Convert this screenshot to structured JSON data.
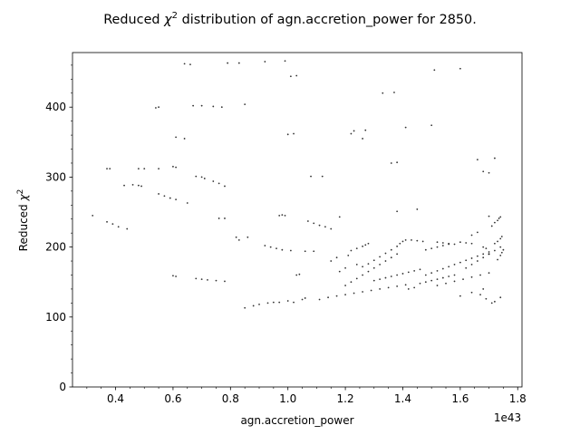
{
  "chart_data": {
    "type": "scatter",
    "title_prefix": "Reduced ",
    "title_symbol": "χ",
    "title_exponent": "2",
    "title_suffix": " distribution of agn.accretion_power for 2850.",
    "xlabel": "agn.accretion_power",
    "ylabel_prefix": "Reduced ",
    "ylabel_symbol": "χ",
    "ylabel_exponent": "2",
    "x_offset_label": "1e43",
    "x_scale": 1e+43,
    "xlim": [
      0.25,
      1.815
    ],
    "ylim": [
      0,
      478
    ],
    "x_ticks": [
      0.4,
      0.6,
      0.8,
      1.0,
      1.2,
      1.4,
      1.6,
      1.8
    ],
    "x_tick_labels": [
      "0.4",
      "0.6",
      "0.8",
      "1.0",
      "1.2",
      "1.4",
      "1.6",
      "1.8"
    ],
    "y_ticks": [
      0,
      100,
      200,
      300,
      400
    ],
    "y_tick_labels": [
      "0",
      "100",
      "200",
      "300",
      "400"
    ],
    "grid": false,
    "marker_color": "#000000",
    "series": [
      {
        "points": [
          [
            0.32,
            245
          ],
          [
            0.37,
            312
          ],
          [
            0.38,
            312
          ],
          [
            0.37,
            236
          ],
          [
            0.39,
            233
          ],
          [
            0.41,
            229
          ],
          [
            0.44,
            226
          ],
          [
            0.43,
            288
          ],
          [
            0.46,
            289
          ],
          [
            0.48,
            288
          ],
          [
            0.49,
            287
          ],
          [
            0.48,
            312
          ],
          [
            0.5,
            312
          ],
          [
            0.54,
            399
          ],
          [
            0.55,
            400
          ],
          [
            0.55,
            312
          ],
          [
            0.55,
            276
          ],
          [
            0.57,
            273
          ],
          [
            0.59,
            270
          ],
          [
            0.61,
            268
          ],
          [
            0.6,
            315
          ],
          [
            0.61,
            314
          ],
          [
            0.6,
            159
          ],
          [
            0.61,
            158
          ],
          [
            0.61,
            357
          ],
          [
            0.64,
            355
          ],
          [
            0.64,
            462
          ],
          [
            0.66,
            461
          ],
          [
            0.65,
            263
          ],
          [
            0.67,
            402
          ],
          [
            0.7,
            402
          ],
          [
            0.74,
            401
          ],
          [
            0.77,
            400
          ],
          [
            0.68,
            301
          ],
          [
            0.7,
            300
          ],
          [
            0.71,
            298
          ],
          [
            0.74,
            294
          ],
          [
            0.76,
            291
          ],
          [
            0.78,
            287
          ],
          [
            0.68,
            155
          ],
          [
            0.7,
            154
          ],
          [
            0.72,
            153
          ],
          [
            0.75,
            152
          ],
          [
            0.78,
            151
          ],
          [
            0.76,
            241
          ],
          [
            0.78,
            241
          ],
          [
            0.79,
            463
          ],
          [
            0.83,
            463
          ],
          [
            0.85,
            404
          ],
          [
            0.82,
            214
          ],
          [
            0.83,
            210
          ],
          [
            0.86,
            214
          ],
          [
            0.92,
            465
          ],
          [
            0.99,
            466
          ],
          [
            0.85,
            113
          ],
          [
            0.88,
            116
          ],
          [
            0.9,
            118
          ],
          [
            0.93,
            120
          ],
          [
            0.95,
            121
          ],
          [
            0.97,
            121
          ],
          [
            0.92,
            202
          ],
          [
            0.94,
            200
          ],
          [
            0.96,
            198
          ],
          [
            0.98,
            196
          ],
          [
            1.01,
            195
          ],
          [
            0.97,
            245
          ],
          [
            0.98,
            246
          ],
          [
            0.99,
            245
          ],
          [
            1.0,
            361
          ],
          [
            1.02,
            362
          ],
          [
            1.01,
            444
          ],
          [
            1.03,
            445
          ],
          [
            1.0,
            123
          ],
          [
            1.02,
            121
          ],
          [
            1.03,
            160
          ],
          [
            1.04,
            161
          ],
          [
            1.05,
            125
          ],
          [
            1.06,
            127
          ],
          [
            1.07,
            237
          ],
          [
            1.09,
            234
          ],
          [
            1.11,
            231
          ],
          [
            1.13,
            229
          ],
          [
            1.15,
            226
          ],
          [
            1.08,
            301
          ],
          [
            1.12,
            301
          ],
          [
            1.06,
            194
          ],
          [
            1.09,
            194
          ],
          [
            1.11,
            125
          ],
          [
            1.14,
            128
          ],
          [
            1.17,
            130
          ],
          [
            1.2,
            132
          ],
          [
            1.23,
            134
          ],
          [
            1.26,
            136
          ],
          [
            1.29,
            138
          ],
          [
            1.32,
            140
          ],
          [
            1.35,
            142
          ],
          [
            1.38,
            144
          ],
          [
            1.41,
            146
          ],
          [
            1.15,
            180
          ],
          [
            1.17,
            185
          ],
          [
            1.18,
            165
          ],
          [
            1.2,
            170
          ],
          [
            1.21,
            188
          ],
          [
            1.22,
            362
          ],
          [
            1.23,
            366
          ],
          [
            1.26,
            355
          ],
          [
            1.27,
            367
          ],
          [
            1.18,
            243
          ],
          [
            1.2,
            145
          ],
          [
            1.22,
            150
          ],
          [
            1.24,
            155
          ],
          [
            1.26,
            160
          ],
          [
            1.28,
            165
          ],
          [
            1.3,
            170
          ],
          [
            1.32,
            175
          ],
          [
            1.34,
            180
          ],
          [
            1.36,
            185
          ],
          [
            1.38,
            190
          ],
          [
            1.22,
            195
          ],
          [
            1.24,
            198
          ],
          [
            1.26,
            201
          ],
          [
            1.27,
            203
          ],
          [
            1.28,
            205
          ],
          [
            1.24,
            175
          ],
          [
            1.26,
            172
          ],
          [
            1.28,
            176
          ],
          [
            1.3,
            181
          ],
          [
            1.32,
            186
          ],
          [
            1.34,
            191
          ],
          [
            1.36,
            196
          ],
          [
            1.38,
            201
          ],
          [
            1.39,
            205
          ],
          [
            1.4,
            208
          ],
          [
            1.41,
            210
          ],
          [
            1.43,
            210
          ],
          [
            1.45,
            209
          ],
          [
            1.47,
            208
          ],
          [
            1.3,
            152
          ],
          [
            1.32,
            154
          ],
          [
            1.34,
            156
          ],
          [
            1.36,
            158
          ],
          [
            1.38,
            160
          ],
          [
            1.4,
            162
          ],
          [
            1.42,
            164
          ],
          [
            1.44,
            166
          ],
          [
            1.46,
            168
          ],
          [
            1.33,
            420
          ],
          [
            1.37,
            421
          ],
          [
            1.36,
            320
          ],
          [
            1.38,
            321
          ],
          [
            1.38,
            251
          ],
          [
            1.41,
            371
          ],
          [
            1.45,
            254
          ],
          [
            1.48,
            196
          ],
          [
            1.5,
            198
          ],
          [
            1.52,
            200
          ],
          [
            1.54,
            202
          ],
          [
            1.56,
            204
          ],
          [
            1.42,
            140
          ],
          [
            1.44,
            142
          ],
          [
            1.46,
            148
          ],
          [
            1.48,
            150
          ],
          [
            1.5,
            152
          ],
          [
            1.52,
            154
          ],
          [
            1.54,
            156
          ],
          [
            1.56,
            158
          ],
          [
            1.58,
            160
          ],
          [
            1.5,
            374
          ],
          [
            1.51,
            453
          ],
          [
            1.6,
            455
          ],
          [
            1.48,
            160
          ],
          [
            1.5,
            163
          ],
          [
            1.52,
            166
          ],
          [
            1.54,
            169
          ],
          [
            1.56,
            172
          ],
          [
            1.58,
            175
          ],
          [
            1.6,
            178
          ],
          [
            1.62,
            181
          ],
          [
            1.64,
            184
          ],
          [
            1.66,
            187
          ],
          [
            1.68,
            190
          ],
          [
            1.7,
            193
          ],
          [
            1.52,
            207
          ],
          [
            1.54,
            206
          ],
          [
            1.56,
            205
          ],
          [
            1.58,
            204
          ],
          [
            1.6,
            207
          ],
          [
            1.62,
            206
          ],
          [
            1.64,
            205
          ],
          [
            1.52,
            145
          ],
          [
            1.55,
            148
          ],
          [
            1.58,
            151
          ],
          [
            1.61,
            154
          ],
          [
            1.64,
            157
          ],
          [
            1.67,
            160
          ],
          [
            1.7,
            163
          ],
          [
            1.6,
            130
          ],
          [
            1.64,
            135
          ],
          [
            1.68,
            140
          ],
          [
            1.66,
            325
          ],
          [
            1.68,
            308
          ],
          [
            1.7,
            306
          ],
          [
            1.72,
            327
          ],
          [
            1.67,
            132
          ],
          [
            1.69,
            126
          ],
          [
            1.71,
            120
          ],
          [
            1.72,
            122
          ],
          [
            1.74,
            128
          ],
          [
            1.64,
            217
          ],
          [
            1.66,
            221
          ],
          [
            1.68,
            200
          ],
          [
            1.69,
            198
          ],
          [
            1.7,
            190
          ],
          [
            1.7,
            244
          ],
          [
            1.71,
            230
          ],
          [
            1.72,
            235
          ],
          [
            1.73,
            238
          ],
          [
            1.735,
            241
          ],
          [
            1.74,
            243
          ],
          [
            1.62,
            170
          ],
          [
            1.64,
            175
          ],
          [
            1.66,
            180
          ],
          [
            1.68,
            185
          ],
          [
            1.7,
            190
          ],
          [
            1.72,
            195
          ],
          [
            1.74,
            200
          ],
          [
            1.72,
            205
          ],
          [
            1.73,
            208
          ],
          [
            1.74,
            212
          ],
          [
            1.745,
            215
          ],
          [
            1.73,
            182
          ],
          [
            1.74,
            188
          ],
          [
            1.745,
            192
          ],
          [
            1.75,
            196
          ]
        ]
      }
    ]
  }
}
